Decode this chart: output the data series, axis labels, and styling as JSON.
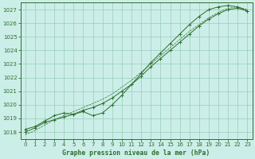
{
  "bg_color": "#cceee8",
  "grid_color": "#99ccbb",
  "line_color": "#2d6e2d",
  "marker_color": "#2d6e2d",
  "title": "Graphe pression niveau de la mer (hPa)",
  "xlim": [
    -0.5,
    23.5
  ],
  "ylim": [
    1017.5,
    1027.5
  ],
  "yticks": [
    1018,
    1019,
    1020,
    1021,
    1022,
    1023,
    1024,
    1025,
    1026,
    1027
  ],
  "xticks": [
    0,
    1,
    2,
    3,
    4,
    5,
    6,
    7,
    8,
    9,
    10,
    11,
    12,
    13,
    14,
    15,
    16,
    17,
    18,
    19,
    20,
    21,
    22,
    23
  ],
  "series1_x": [
    0,
    1,
    2,
    3,
    4,
    5,
    6,
    7,
    8,
    9,
    10,
    11,
    12,
    13,
    14,
    15,
    16,
    17,
    18,
    19,
    20,
    21,
    22,
    23
  ],
  "series1_y": [
    1018.0,
    1018.3,
    1018.7,
    1018.9,
    1019.1,
    1019.3,
    1019.6,
    1019.8,
    1020.1,
    1020.5,
    1021.0,
    1021.5,
    1022.1,
    1022.8,
    1023.4,
    1024.0,
    1024.6,
    1025.2,
    1025.8,
    1026.3,
    1026.7,
    1027.0,
    1027.1,
    1026.9
  ],
  "series2_x": [
    0,
    1,
    2,
    3,
    4,
    5,
    6,
    7,
    8,
    9,
    10,
    11,
    12,
    13,
    14,
    15,
    16,
    17,
    18,
    19,
    20,
    21,
    22,
    23
  ],
  "series2_y": [
    1018.2,
    1018.4,
    1018.8,
    1019.2,
    1019.4,
    1019.3,
    1019.5,
    1019.2,
    1019.4,
    1020.0,
    1020.7,
    1021.5,
    1022.3,
    1023.1,
    1023.8,
    1024.5,
    1025.2,
    1025.9,
    1026.5,
    1027.0,
    1027.2,
    1027.3,
    1027.2,
    1026.9
  ],
  "series3_x": [
    0,
    1,
    2,
    3,
    4,
    5,
    6,
    7,
    8,
    9,
    10,
    11,
    12,
    13,
    14,
    15,
    16,
    17,
    18,
    19,
    20,
    21,
    22,
    23
  ],
  "series3_y": [
    1017.8,
    1018.1,
    1018.5,
    1018.9,
    1019.2,
    1019.5,
    1019.8,
    1020.1,
    1020.4,
    1020.8,
    1021.3,
    1021.8,
    1022.4,
    1023.0,
    1023.6,
    1024.2,
    1024.8,
    1025.4,
    1025.9,
    1026.4,
    1026.8,
    1027.1,
    1027.2,
    1027.0
  ]
}
